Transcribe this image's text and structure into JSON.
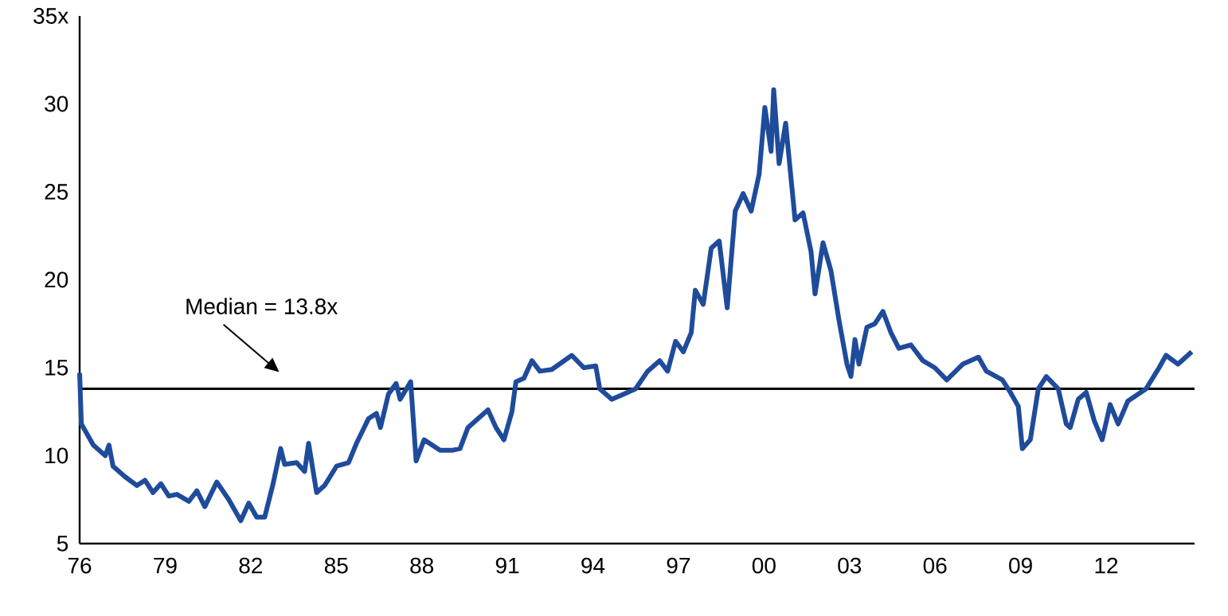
{
  "chart_data": {
    "type": "line",
    "x": [
      1976.0,
      1976.06,
      1976.48,
      1976.9,
      1977.03,
      1977.17,
      1977.59,
      1978.01,
      1978.29,
      1978.57,
      1978.85,
      1979.13,
      1979.41,
      1979.83,
      1980.11,
      1980.39,
      1980.81,
      1981.23,
      1981.65,
      1981.93,
      1982.21,
      1982.49,
      1982.77,
      1983.05,
      1983.19,
      1983.61,
      1983.89,
      1984.03,
      1984.31,
      1984.59,
      1985.01,
      1985.43,
      1985.71,
      1986.13,
      1986.41,
      1986.55,
      1986.83,
      1987.1,
      1987.24,
      1987.61,
      1987.8,
      1988.08,
      1988.64,
      1989.06,
      1989.34,
      1989.62,
      1989.9,
      1990.32,
      1990.6,
      1990.88,
      1991.16,
      1991.3,
      1991.58,
      1991.86,
      1992.14,
      1992.56,
      1993.26,
      1993.68,
      1994.1,
      1994.24,
      1994.66,
      1995.08,
      1995.5,
      1995.92,
      1996.34,
      1996.62,
      1996.9,
      1997.17,
      1997.45,
      1997.59,
      1997.87,
      1998.15,
      1998.43,
      1998.71,
      1998.99,
      1999.27,
      1999.55,
      1999.83,
      2000.03,
      2000.25,
      2000.34,
      2000.53,
      2000.76,
      2001.09,
      2001.37,
      2001.65,
      2001.79,
      2002.07,
      2002.35,
      2002.63,
      2002.91,
      2003.05,
      2003.19,
      2003.33,
      2003.61,
      2003.89,
      2004.17,
      2004.45,
      2004.73,
      2005.15,
      2005.57,
      2005.99,
      2006.41,
      2006.97,
      2007.52,
      2007.8,
      2008.36,
      2008.64,
      2008.92,
      2009.06,
      2009.34,
      2009.62,
      2009.9,
      2010.32,
      2010.6,
      2010.74,
      2011.02,
      2011.3,
      2011.58,
      2011.86,
      2012.14,
      2012.42,
      2012.76,
      2013.4,
      2013.82,
      2014.1,
      2014.52,
      2015.0
    ],
    "series": [
      {
        "color": "#1f4b9b",
        "values": [
          14.7,
          11.8,
          10.6,
          10.0,
          10.6,
          9.4,
          8.8,
          8.3,
          8.6,
          7.9,
          8.4,
          7.7,
          7.8,
          7.4,
          8.0,
          7.1,
          8.5,
          7.5,
          6.3,
          7.3,
          6.5,
          6.5,
          8.3,
          10.4,
          9.5,
          9.6,
          9.1,
          10.7,
          7.9,
          8.3,
          9.4,
          9.6,
          10.7,
          12.1,
          12.4,
          11.6,
          13.5,
          14.1,
          13.2,
          14.2,
          9.7,
          10.9,
          10.3,
          10.3,
          10.4,
          11.6,
          12.0,
          12.6,
          11.6,
          10.9,
          12.5,
          14.2,
          14.4,
          15.4,
          14.8,
          14.9,
          15.7,
          15.0,
          15.1,
          13.8,
          13.2,
          13.5,
          13.8,
          14.8,
          15.4,
          14.8,
          16.5,
          15.9,
          17.0,
          19.4,
          18.6,
          21.8,
          22.2,
          18.4,
          23.9,
          24.9,
          23.9,
          26.0,
          29.8,
          27.3,
          30.8,
          26.6,
          28.9,
          23.4,
          23.8,
          21.6,
          19.2,
          22.1,
          20.5,
          17.7,
          15.2,
          14.5,
          16.6,
          15.2,
          17.3,
          17.5,
          18.2,
          17.0,
          16.1,
          16.3,
          15.4,
          15.0,
          14.3,
          15.2,
          15.6,
          14.8,
          14.3,
          13.6,
          12.8,
          10.4,
          10.9,
          13.8,
          14.5,
          13.8,
          11.8,
          11.6,
          13.2,
          13.6,
          12.0,
          10.9,
          12.9,
          11.8,
          13.1,
          13.8,
          14.9,
          15.7,
          15.2,
          15.9
        ]
      }
    ],
    "xlim": [
      1976,
      2015.1
    ],
    "xticks": [
      {
        "value": 1976,
        "label": "76"
      },
      {
        "value": 1979,
        "label": "79"
      },
      {
        "value": 1982,
        "label": "82"
      },
      {
        "value": 1985,
        "label": "85"
      },
      {
        "value": 1988,
        "label": "88"
      },
      {
        "value": 1991,
        "label": "91"
      },
      {
        "value": 1994,
        "label": "94"
      },
      {
        "value": 1997,
        "label": "97"
      },
      {
        "value": 2000,
        "label": "00"
      },
      {
        "value": 2003,
        "label": "03"
      },
      {
        "value": 2006,
        "label": "06"
      },
      {
        "value": 2009,
        "label": "09"
      },
      {
        "value": 2012,
        "label": "12"
      }
    ],
    "ylim": [
      5,
      35
    ],
    "yticks": [
      5,
      10,
      15,
      20,
      25,
      30,
      {
        "value": 35,
        "label": "35x"
      }
    ],
    "ref_lines": [
      {
        "axis": "y",
        "value": 13.8,
        "label": "Median = 13.8x",
        "color": "#000000"
      }
    ]
  }
}
